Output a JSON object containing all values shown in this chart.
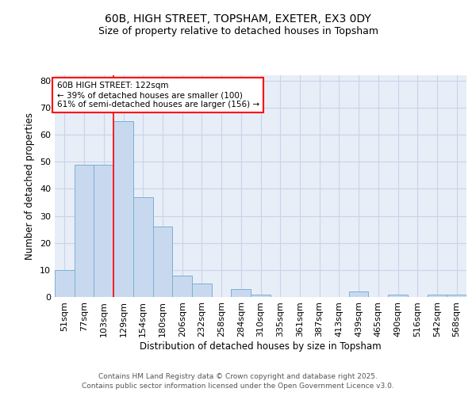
{
  "title1": "60B, HIGH STREET, TOPSHAM, EXETER, EX3 0DY",
  "title2": "Size of property relative to detached houses in Topsham",
  "xlabel": "Distribution of detached houses by size in Topsham",
  "ylabel": "Number of detached properties",
  "categories": [
    "51sqm",
    "77sqm",
    "103sqm",
    "129sqm",
    "154sqm",
    "180sqm",
    "206sqm",
    "232sqm",
    "258sqm",
    "284sqm",
    "310sqm",
    "335sqm",
    "361sqm",
    "387sqm",
    "413sqm",
    "439sqm",
    "465sqm",
    "490sqm",
    "516sqm",
    "542sqm",
    "568sqm"
  ],
  "values": [
    10,
    49,
    49,
    65,
    37,
    26,
    8,
    5,
    0,
    3,
    1,
    0,
    0,
    0,
    0,
    2,
    0,
    1,
    0,
    1,
    1
  ],
  "bar_color": "#c8d9ef",
  "bar_edge_color": "#7bafd4",
  "grid_color": "#c8d4e8",
  "background_color": "#ffffff",
  "plot_bg_color": "#e8eef8",
  "vline_color": "red",
  "vline_x_index": 3,
  "annotation_text": "60B HIGH STREET: 122sqm\n← 39% of detached houses are smaller (100)\n61% of semi-detached houses are larger (156) →",
  "annotation_box_color": "white",
  "annotation_box_edge": "red",
  "ylim": [
    0,
    82
  ],
  "yticks": [
    0,
    10,
    20,
    30,
    40,
    50,
    60,
    70,
    80
  ],
  "footer": "Contains HM Land Registry data © Crown copyright and database right 2025.\nContains public sector information licensed under the Open Government Licence v3.0.",
  "title_fontsize": 10,
  "subtitle_fontsize": 9,
  "axis_label_fontsize": 8.5,
  "tick_fontsize": 8,
  "footer_fontsize": 6.5,
  "annotation_fontsize": 7.5
}
